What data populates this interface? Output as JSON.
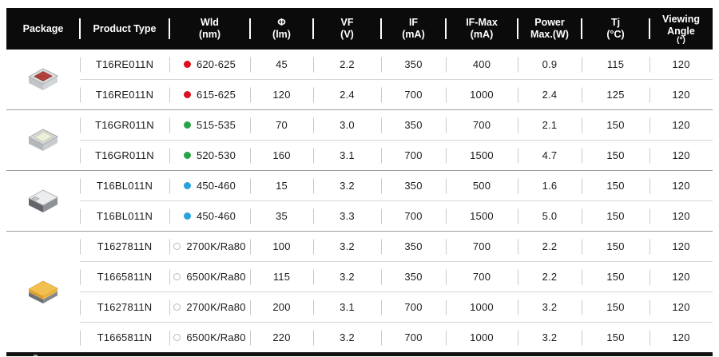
{
  "header": {
    "columns": [
      {
        "id": "package",
        "lines": [
          "Package"
        ]
      },
      {
        "id": "product_type",
        "lines": [
          "Product Type"
        ]
      },
      {
        "id": "wld",
        "lines": [
          "Wld",
          "(nm)"
        ]
      },
      {
        "id": "flux",
        "lines": [
          "Φ",
          "(lm)"
        ]
      },
      {
        "id": "vf",
        "lines": [
          "VF",
          "(V)"
        ]
      },
      {
        "id": "if",
        "lines": [
          "IF",
          "(mA)"
        ]
      },
      {
        "id": "if_max",
        "lines": [
          "IF-Max",
          "(mA)"
        ]
      },
      {
        "id": "power_max",
        "lines": [
          "Power",
          "Max.(W)"
        ]
      },
      {
        "id": "tj",
        "lines": [
          "Tj",
          "(°C)"
        ]
      },
      {
        "id": "viewing_angle",
        "lines": [
          "Viewing",
          "Angle",
          "(°)"
        ]
      }
    ]
  },
  "colors": {
    "header_bg": "#0b0b0b",
    "red": "#d8101f",
    "green": "#2aa348",
    "blue": "#29a3dc",
    "white_ring": "#b9b9b9",
    "group_line": "#9d9d9d",
    "row_line": "#d6d6d6",
    "cell_tick": "#c9c9c9"
  },
  "groups": [
    {
      "package_icon": "led-package-red-icon",
      "rows": [
        {
          "product_type": "T16RE011N",
          "marker": "red",
          "wld": "620-625",
          "flux": "45",
          "vf": "2.2",
          "if": "350",
          "if_max": "400",
          "power_max": "0.9",
          "tj": "115",
          "viewing_angle": "120"
        },
        {
          "product_type": "T16RE011N",
          "marker": "red",
          "wld": "615-625",
          "flux": "120",
          "vf": "2.4",
          "if": "700",
          "if_max": "1000",
          "power_max": "2.4",
          "tj": "125",
          "viewing_angle": "120"
        }
      ]
    },
    {
      "package_icon": "led-package-green-icon",
      "rows": [
        {
          "product_type": "T16GR011N",
          "marker": "green",
          "wld": "515-535",
          "flux": "70",
          "vf": "3.0",
          "if": "350",
          "if_max": "700",
          "power_max": "2.1",
          "tj": "150",
          "viewing_angle": "120"
        },
        {
          "product_type": "T16GR011N",
          "marker": "green",
          "wld": "520-530",
          "flux": "160",
          "vf": "3.1",
          "if": "700",
          "if_max": "1500",
          "power_max": "4.7",
          "tj": "150",
          "viewing_angle": "120"
        }
      ]
    },
    {
      "package_icon": "led-package-blue-icon",
      "rows": [
        {
          "product_type": "T16BL011N",
          "marker": "blue",
          "wld": "450-460",
          "flux": "15",
          "vf": "3.2",
          "if": "350",
          "if_max": "500",
          "power_max": "1.6",
          "tj": "150",
          "viewing_angle": "120"
        },
        {
          "product_type": "T16BL011N",
          "marker": "blue",
          "wld": "450-460",
          "flux": "35",
          "vf": "3.3",
          "if": "700",
          "if_max": "1500",
          "power_max": "5.0",
          "tj": "150",
          "viewing_angle": "120"
        }
      ]
    },
    {
      "package_icon": "led-package-white-icon",
      "rows": [
        {
          "product_type": "T1627811N",
          "marker": "white",
          "wld": "2700K/Ra80",
          "flux": "100",
          "vf": "3.2",
          "if": "350",
          "if_max": "700",
          "power_max": "2.2",
          "tj": "150",
          "viewing_angle": "120"
        },
        {
          "product_type": "T1665811N",
          "marker": "white",
          "wld": "6500K/Ra80",
          "flux": "115",
          "vf": "3.2",
          "if": "350",
          "if_max": "700",
          "power_max": "2.2",
          "tj": "150",
          "viewing_angle": "120"
        },
        {
          "product_type": "T1627811N",
          "marker": "white",
          "wld": "2700K/Ra80",
          "flux": "200",
          "vf": "3.1",
          "if": "700",
          "if_max": "1000",
          "power_max": "3.2",
          "tj": "150",
          "viewing_angle": "120"
        },
        {
          "product_type": "T1665811N",
          "marker": "white",
          "wld": "6500K/Ra80",
          "flux": "220",
          "vf": "3.2",
          "if": "700",
          "if_max": "1000",
          "power_max": "3.2",
          "tj": "150",
          "viewing_angle": "120"
        }
      ]
    }
  ]
}
